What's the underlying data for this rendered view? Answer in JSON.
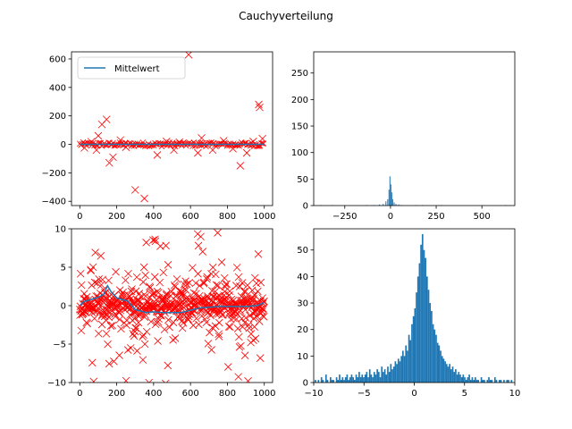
{
  "figure": {
    "title": "Cauchyverteilung",
    "colors": {
      "scatter": "#ff0000",
      "mean_line": "#1f77b4",
      "bars": "#1f77b4"
    }
  },
  "chart_data": [
    {
      "id": "top-left",
      "type": "scatter",
      "title": "",
      "xlabel": "",
      "ylabel": "",
      "xlim": [
        -45,
        1045
      ],
      "ylim": [
        -430,
        650
      ],
      "xticks": [
        0,
        200,
        400,
        600,
        800,
        1000
      ],
      "yticks": [
        -400,
        -200,
        0,
        200,
        400,
        600
      ],
      "grid": false,
      "legend": {
        "placement": "top-left",
        "entries": [
          "Mittelwert"
        ]
      },
      "series": [
        {
          "name": "",
          "marker": "x",
          "points": [
            [
              62,
              18
            ],
            [
              100,
              60
            ],
            [
              120,
              140
            ],
            [
              145,
              175
            ],
            [
              160,
              -130
            ],
            [
              180,
              -90
            ],
            [
              90,
              -40
            ],
            [
              300,
              -320
            ],
            [
              350,
              -380
            ],
            [
              420,
              -75
            ],
            [
              510,
              -40
            ],
            [
              590,
              630
            ],
            [
              640,
              -60
            ],
            [
              660,
              45
            ],
            [
              720,
              -40
            ],
            [
              870,
              -150
            ],
            [
              905,
              -60
            ],
            [
              970,
              280
            ],
            [
              975,
              260
            ],
            [
              990,
              40
            ],
            [
              25,
              -25
            ],
            [
              220,
              30
            ],
            [
              250,
              -20
            ],
            [
              470,
              20
            ],
            [
              540,
              15
            ],
            [
              780,
              25
            ],
            [
              830,
              -30
            ],
            [
              940,
              20
            ]
          ],
          "dense_band": {
            "x": [
              0,
              1000
            ],
            "y": [
              -15,
              15
            ]
          }
        },
        {
          "name": "Mittelwert",
          "type": "line",
          "x": [
            0,
            1000
          ],
          "y": [
            0,
            0
          ]
        }
      ]
    },
    {
      "id": "top-right",
      "type": "bar",
      "title": "",
      "xlabel": "",
      "ylabel": "",
      "xlim": [
        -420,
        680
      ],
      "ylim": [
        0,
        290
      ],
      "xticks": [
        -250,
        0,
        250,
        500
      ],
      "yticks": [
        0,
        50,
        100,
        150,
        200,
        250
      ],
      "grid": false,
      "bins": [
        {
          "x": -380,
          "count": 1
        },
        {
          "x": -320,
          "count": 1
        },
        {
          "x": -130,
          "count": 1
        },
        {
          "x": -90,
          "count": 1
        },
        {
          "x": -60,
          "count": 2
        },
        {
          "x": -40,
          "count": 3
        },
        {
          "x": -25,
          "count": 8
        },
        {
          "x": -15,
          "count": 12
        },
        {
          "x": -8,
          "count": 30
        },
        {
          "x": -3,
          "count": 55
        },
        {
          "x": 2,
          "count": 40
        },
        {
          "x": 7,
          "count": 25
        },
        {
          "x": 12,
          "count": 12
        },
        {
          "x": 20,
          "count": 6
        },
        {
          "x": 30,
          "count": 3
        },
        {
          "x": 45,
          "count": 2
        },
        {
          "x": 60,
          "count": 1
        },
        {
          "x": 140,
          "count": 1
        },
        {
          "x": 175,
          "count": 1
        },
        {
          "x": 265,
          "count": 1
        },
        {
          "x": 280,
          "count": 1
        },
        {
          "x": 630,
          "count": 1
        }
      ],
      "bin_width": 5
    },
    {
      "id": "bottom-left",
      "type": "scatter",
      "title": "",
      "xlabel": "",
      "ylabel": "",
      "xlim": [
        -45,
        1045
      ],
      "ylim": [
        -10,
        10
      ],
      "xticks": [
        0,
        200,
        400,
        600,
        800,
        1000
      ],
      "yticks": [
        -10,
        -5,
        0,
        5,
        10
      ],
      "grid": false,
      "series": [
        {
          "name": "",
          "marker": "x",
          "points": "cauchy-like sample, 1000 points, scale 1, clipped to axes"
        },
        {
          "name": "",
          "type": "line",
          "x": [
            0,
            20,
            60,
            90,
            110,
            130,
            150,
            170,
            200,
            260,
            300,
            330,
            360,
            400,
            450,
            500,
            550,
            600,
            650,
            700,
            760,
            820,
            900,
            960,
            1000
          ],
          "y": [
            0.0,
            0.5,
            0.8,
            1.0,
            1.2,
            1.5,
            2.6,
            1.8,
            1.0,
            0.6,
            -0.5,
            -0.7,
            -0.9,
            -0.8,
            -0.9,
            -0.9,
            -0.9,
            -0.6,
            -0.3,
            -0.2,
            -0.1,
            -0.1,
            -0.1,
            0.0,
            0.4
          ]
        }
      ]
    },
    {
      "id": "bottom-right",
      "type": "bar",
      "title": "",
      "xlabel": "",
      "ylabel": "",
      "xlim": [
        -10,
        10
      ],
      "ylim": [
        0,
        58
      ],
      "xticks": [
        -10,
        -5,
        0,
        5,
        10
      ],
      "yticks": [
        0,
        10,
        20,
        30,
        40,
        50
      ],
      "grid": false,
      "bin_width": 0.15,
      "bin_start": -9.9,
      "counts": [
        1,
        0,
        1,
        0,
        2,
        1,
        0,
        3,
        1,
        0,
        2,
        1,
        1,
        0,
        2,
        1,
        3,
        1,
        2,
        1,
        2,
        3,
        1,
        2,
        3,
        2,
        1,
        3,
        2,
        4,
        2,
        3,
        2,
        3,
        4,
        2,
        5,
        3,
        2,
        4,
        3,
        5,
        4,
        2,
        6,
        4,
        5,
        3,
        6,
        4,
        7,
        5,
        6,
        8,
        7,
        9,
        8,
        10,
        12,
        10,
        14,
        12,
        18,
        16,
        22,
        25,
        28,
        34,
        40,
        45,
        52,
        56,
        50,
        47,
        40,
        35,
        30,
        27,
        22,
        20,
        18,
        15,
        14,
        12,
        10,
        9,
        8,
        7,
        6,
        7,
        5,
        6,
        4,
        5,
        3,
        4,
        3,
        2,
        3,
        2,
        1,
        2,
        3,
        1,
        2,
        1,
        2,
        1,
        1,
        0,
        2,
        1,
        1,
        0,
        1,
        2,
        1,
        1,
        0,
        2,
        1,
        0,
        1,
        1,
        0,
        1,
        0,
        1,
        1,
        0,
        1,
        0,
        0,
        1
      ]
    }
  ]
}
